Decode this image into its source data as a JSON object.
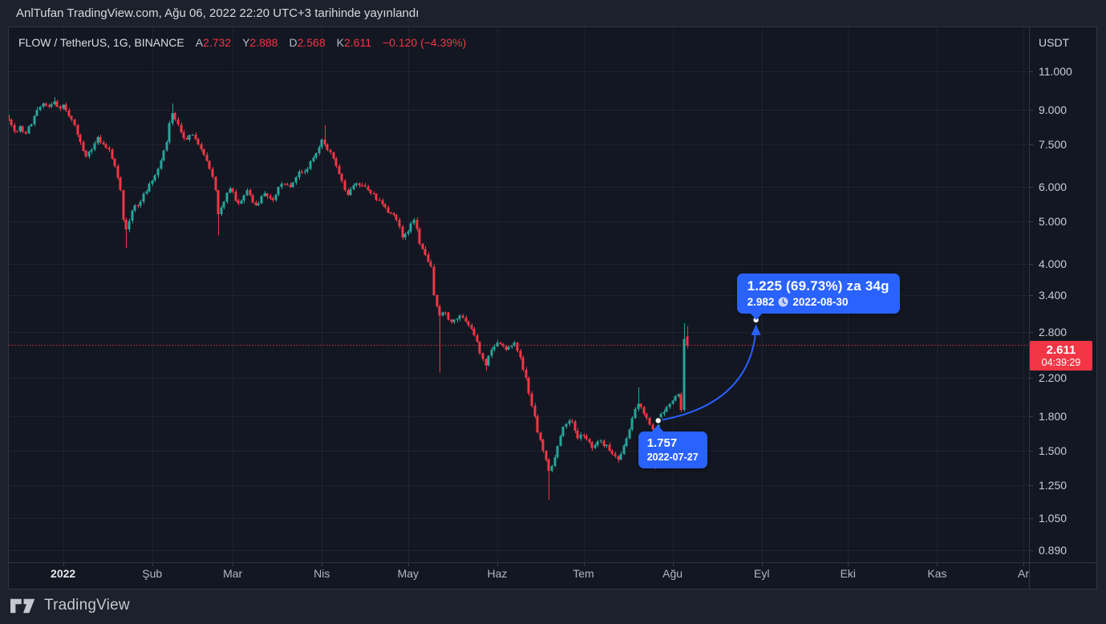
{
  "topbar": {
    "published_text": "AnlTufan TradingView.com, Ağu 06, 2022 22:20 UTC+3 tarihinde yayınlandı"
  },
  "legend": {
    "symbol": "FLOW / TetherUS, 1G, BINANCE",
    "ohlc": [
      {
        "label": "A",
        "value": "2.732"
      },
      {
        "label": "Y",
        "value": "2.888"
      },
      {
        "label": "D",
        "value": "2.568"
      },
      {
        "label": "K",
        "value": "2.611"
      }
    ],
    "change": "−0.120 (−4.39%)"
  },
  "axes": {
    "currency": "USDT",
    "price_ticks": [
      {
        "label": "11.000",
        "value": 11
      },
      {
        "label": "9.000",
        "value": 9
      },
      {
        "label": "7.500",
        "value": 7.5
      },
      {
        "label": "6.000",
        "value": 6
      },
      {
        "label": "5.000",
        "value": 5
      },
      {
        "label": "4.000",
        "value": 4
      },
      {
        "label": "3.400",
        "value": 3.4
      },
      {
        "label": "2.800",
        "value": 2.8
      },
      {
        "label": "2.200",
        "value": 2.2
      },
      {
        "label": "1.800",
        "value": 1.8
      },
      {
        "label": "1.500",
        "value": 1.5
      },
      {
        "label": "1.250",
        "value": 1.25
      },
      {
        "label": "1.050",
        "value": 1.05
      },
      {
        "label": "0.890",
        "value": 0.89
      }
    ],
    "time_ticks": [
      {
        "label": "2022",
        "t": 19,
        "year": true
      },
      {
        "label": "Şub",
        "t": 50
      },
      {
        "label": "Mar",
        "t": 78
      },
      {
        "label": "Nis",
        "t": 109
      },
      {
        "label": "May",
        "t": 139
      },
      {
        "label": "Haz",
        "t": 170
      },
      {
        "label": "Tem",
        "t": 200
      },
      {
        "label": "Ağu",
        "t": 231
      },
      {
        "label": "Eyl",
        "t": 262
      },
      {
        "label": "Eki",
        "t": 292
      },
      {
        "label": "Kas",
        "t": 323
      },
      {
        "label": "Ar",
        "t": 353
      }
    ]
  },
  "price_line": {
    "value": 2.611,
    "label": "2.611",
    "countdown": "04:39:29"
  },
  "annotations": {
    "points": [
      {
        "t": 226,
        "price": 1.757,
        "date": "2022-07-27"
      },
      {
        "t": 260,
        "price": 2.982,
        "date": "2022-08-30"
      }
    ],
    "tooltip_big": {
      "title": "1.225 (69.73%) za 34g",
      "price": "2.982",
      "date": "2022-08-30"
    },
    "tooltip_small": {
      "price": "1.757",
      "date": "2022-07-27"
    }
  },
  "footer": {
    "brand": "TradingView"
  },
  "colors": {
    "up": "#26a69a",
    "down": "#f23645",
    "accent": "#2962ff",
    "price_line": "#f23645",
    "grid": "rgba(170,180,205,0.07)",
    "marker_ring": "#161b27"
  },
  "chart_data": {
    "type": "candlestick",
    "symbol": "FLOW/TetherUS",
    "exchange": "BINANCE",
    "timeframe": "1G (daily)",
    "scale": "logarithmic",
    "start_date": "2021-12-13",
    "end_date": "2022-08-06",
    "days": 236,
    "ylim": [
      0.82,
      12.2
    ],
    "price_ticks": [
      11,
      9,
      7.5,
      6,
      5,
      4,
      3.4,
      2.8,
      2.2,
      1.8,
      1.5,
      1.25,
      1.05,
      0.89
    ],
    "last_candle": {
      "o": 2.732,
      "h": 2.888,
      "l": 2.568,
      "c": 2.611
    },
    "anchors": [
      [
        0,
        8.55
      ],
      [
        1,
        8.3
      ],
      [
        2,
        8.05
      ],
      [
        4,
        8.25
      ],
      [
        6,
        7.95
      ],
      [
        8,
        8.35
      ],
      [
        10,
        9.0
      ],
      [
        12,
        9.3
      ],
      [
        14,
        9.15
      ],
      [
        16,
        9.4
      ],
      [
        18,
        9.05
      ],
      [
        19,
        9.25
      ],
      [
        21,
        8.7
      ],
      [
        23,
        8.3
      ],
      [
        25,
        7.6
      ],
      [
        27,
        7.05
      ],
      [
        29,
        7.3
      ],
      [
        31,
        7.8
      ],
      [
        33,
        7.5
      ],
      [
        35,
        7.3
      ],
      [
        37,
        6.7
      ],
      [
        39,
        5.9
      ],
      [
        40,
        5.05
      ],
      [
        41,
        4.8
      ],
      [
        43,
        5.3
      ],
      [
        46,
        5.55
      ],
      [
        49,
        6.1
      ],
      [
        52,
        6.6
      ],
      [
        55,
        7.6
      ],
      [
        56,
        8.4
      ],
      [
        57,
        8.85
      ],
      [
        58,
        8.55
      ],
      [
        60,
        8.0
      ],
      [
        62,
        7.7
      ],
      [
        64,
        7.9
      ],
      [
        66,
        7.5
      ],
      [
        68,
        7.1
      ],
      [
        70,
        6.6
      ],
      [
        72,
        5.9
      ],
      [
        73,
        5.2
      ],
      [
        75,
        5.55
      ],
      [
        77,
        5.95
      ],
      [
        80,
        5.5
      ],
      [
        83,
        5.9
      ],
      [
        86,
        5.45
      ],
      [
        89,
        5.8
      ],
      [
        92,
        5.6
      ],
      [
        95,
        6.1
      ],
      [
        98,
        6.0
      ],
      [
        101,
        6.5
      ],
      [
        104,
        6.6
      ],
      [
        106,
        7.0
      ],
      [
        108,
        7.4
      ],
      [
        109,
        7.7
      ],
      [
        110,
        7.5
      ],
      [
        112,
        7.2
      ],
      [
        114,
        6.7
      ],
      [
        116,
        6.2
      ],
      [
        118,
        5.75
      ],
      [
        120,
        6.05
      ],
      [
        123,
        6.05
      ],
      [
        126,
        5.8
      ],
      [
        129,
        5.6
      ],
      [
        132,
        5.25
      ],
      [
        135,
        5.05
      ],
      [
        137,
        4.6
      ],
      [
        139,
        4.75
      ],
      [
        141,
        5.05
      ],
      [
        143,
        4.45
      ],
      [
        145,
        4.2
      ],
      [
        146,
        4.05
      ],
      [
        147,
        3.95
      ],
      [
        148,
        3.4
      ],
      [
        149,
        3.2
      ],
      [
        150,
        3.05
      ],
      [
        152,
        3.1
      ],
      [
        154,
        2.95
      ],
      [
        157,
        3.05
      ],
      [
        160,
        2.9
      ],
      [
        162,
        2.75
      ],
      [
        164,
        2.5
      ],
      [
        166,
        2.35
      ],
      [
        168,
        2.55
      ],
      [
        170,
        2.65
      ],
      [
        173,
        2.55
      ],
      [
        176,
        2.65
      ],
      [
        178,
        2.45
      ],
      [
        180,
        2.2
      ],
      [
        182,
        1.9
      ],
      [
        184,
        1.65
      ],
      [
        186,
        1.5
      ],
      [
        188,
        1.35
      ],
      [
        190,
        1.45
      ],
      [
        193,
        1.7
      ],
      [
        196,
        1.75
      ],
      [
        198,
        1.6
      ],
      [
        200,
        1.62
      ],
      [
        203,
        1.52
      ],
      [
        206,
        1.58
      ],
      [
        209,
        1.5
      ],
      [
        212,
        1.43
      ],
      [
        215,
        1.6
      ],
      [
        217,
        1.78
      ],
      [
        219,
        1.92
      ],
      [
        221,
        1.82
      ],
      [
        223,
        1.72
      ],
      [
        225,
        1.62
      ],
      [
        226,
        1.757
      ],
      [
        228,
        1.84
      ],
      [
        230,
        1.92
      ],
      [
        231,
        1.95
      ],
      [
        233,
        2.02
      ],
      [
        234,
        1.86
      ],
      [
        235,
        2.7
      ],
      [
        236,
        2.611
      ]
    ],
    "wick_overrides": [
      {
        "t": 16,
        "h": 9.62
      },
      {
        "t": 41,
        "l": 4.35
      },
      {
        "t": 57,
        "h": 9.3
      },
      {
        "t": 73,
        "l": 4.65
      },
      {
        "t": 110,
        "h": 8.3
      },
      {
        "t": 150,
        "l": 2.26
      },
      {
        "t": 166,
        "l": 2.28
      },
      {
        "t": 188,
        "l": 1.16
      },
      {
        "t": 219,
        "h": 2.09
      },
      {
        "t": 225,
        "l": 1.36
      },
      {
        "t": 235,
        "h": 2.93
      }
    ],
    "trend_annotation": {
      "from": {
        "date": "2022-07-27",
        "price": 1.757
      },
      "to": {
        "date": "2022-08-30",
        "price": 2.982
      },
      "change_abs": 1.225,
      "change_pct": 69.73,
      "duration_days": 34
    }
  }
}
